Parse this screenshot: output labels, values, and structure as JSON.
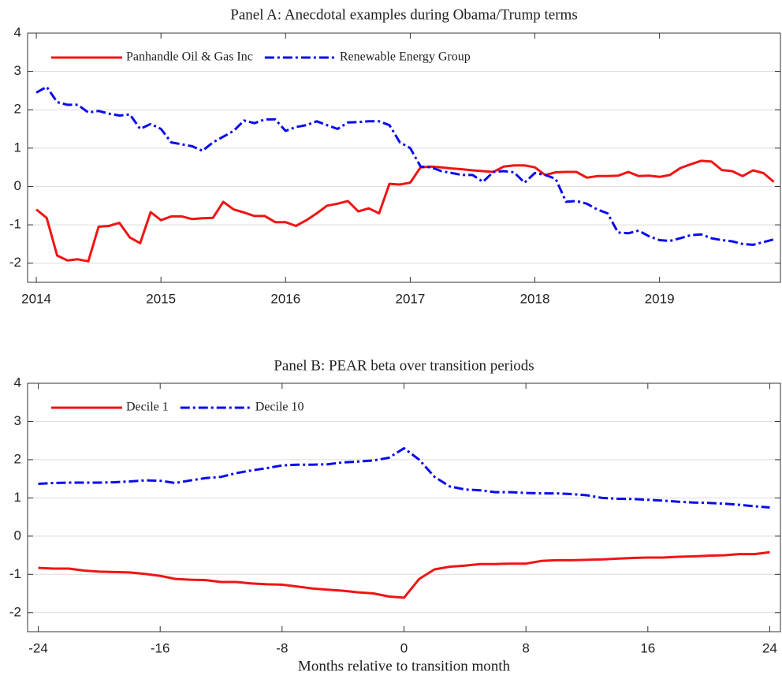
{
  "chart_data": [
    {
      "type": "line",
      "title": "Panel A: Anecdotal examples during Obama/Trump terms",
      "x": [
        2014,
        2014.083,
        2014.167,
        2014.25,
        2014.333,
        2014.417,
        2014.5,
        2014.583,
        2014.667,
        2014.75,
        2014.833,
        2014.917,
        2015,
        2015.083,
        2015.167,
        2015.25,
        2015.333,
        2015.417,
        2015.5,
        2015.583,
        2015.667,
        2015.75,
        2015.833,
        2015.917,
        2016,
        2016.083,
        2016.167,
        2016.25,
        2016.333,
        2016.417,
        2016.5,
        2016.583,
        2016.667,
        2016.75,
        2016.833,
        2016.917,
        2017,
        2017.083,
        2017.167,
        2017.25,
        2017.333,
        2017.417,
        2017.5,
        2017.583,
        2017.667,
        2017.75,
        2017.833,
        2017.917,
        2018,
        2018.083,
        2018.167,
        2018.25,
        2018.333,
        2018.417,
        2018.5,
        2018.583,
        2018.667,
        2018.75,
        2018.833,
        2018.917,
        2019,
        2019.083,
        2019.167,
        2019.25,
        2019.333,
        2019.417,
        2019.5,
        2019.583,
        2019.667,
        2019.75,
        2019.833,
        2019.917
      ],
      "series": [
        {
          "name": "Panhandle Oil & Gas Inc",
          "color": "#f01414",
          "dash": "solid",
          "values": [
            -0.6,
            -0.82,
            -1.8,
            -1.93,
            -1.9,
            -1.95,
            -1.05,
            -1.03,
            -0.95,
            -1.33,
            -1.48,
            -0.67,
            -0.88,
            -0.78,
            -0.78,
            -0.85,
            -0.83,
            -0.82,
            -0.4,
            -0.6,
            -0.68,
            -0.77,
            -0.77,
            -0.93,
            -0.93,
            -1.03,
            -0.88,
            -0.7,
            -0.5,
            -0.45,
            -0.38,
            -0.65,
            -0.57,
            -0.7,
            0.07,
            0.05,
            0.1,
            0.5,
            0.52,
            0.5,
            0.47,
            0.45,
            0.42,
            0.4,
            0.38,
            0.52,
            0.55,
            0.55,
            0.5,
            0.3,
            0.37,
            0.38,
            0.38,
            0.23,
            0.27,
            0.27,
            0.28,
            0.38,
            0.27,
            0.28,
            0.25,
            0.3,
            0.48,
            0.58,
            0.67,
            0.65,
            0.43,
            0.4,
            0.27,
            0.42,
            0.35,
            0.12
          ]
        },
        {
          "name": "Renewable Energy Group",
          "color": "#0a0af0",
          "dash": "dashdot",
          "values": [
            2.45,
            2.6,
            2.2,
            2.13,
            2.13,
            1.93,
            1.97,
            1.9,
            1.85,
            1.88,
            1.5,
            1.63,
            1.5,
            1.15,
            1.1,
            1.05,
            0.93,
            1.15,
            1.3,
            1.45,
            1.72,
            1.65,
            1.75,
            1.75,
            1.45,
            1.55,
            1.6,
            1.7,
            1.6,
            1.5,
            1.67,
            1.68,
            1.7,
            1.7,
            1.6,
            1.15,
            1.0,
            0.52,
            0.5,
            0.4,
            0.35,
            0.3,
            0.3,
            0.12,
            0.38,
            0.4,
            0.37,
            0.1,
            0.35,
            0.3,
            0.2,
            -0.4,
            -0.38,
            -0.45,
            -0.6,
            -0.7,
            -1.2,
            -1.22,
            -1.15,
            -1.3,
            -1.4,
            -1.42,
            -1.35,
            -1.27,
            -1.25,
            -1.35,
            -1.4,
            -1.43,
            -1.5,
            -1.52,
            -1.45,
            -1.38
          ]
        }
      ],
      "xlim": [
        2013.93,
        2019.97
      ],
      "xticks": [
        2014,
        2015,
        2016,
        2017,
        2018,
        2019
      ],
      "ylim": [
        -2.5,
        4
      ],
      "yticks": [
        -2,
        -1,
        0,
        1,
        2,
        3,
        4
      ],
      "grid": true,
      "legend": "upper left"
    },
    {
      "type": "line",
      "title": "Panel B: PEAR beta over transition periods",
      "xlabel": "Months relative to transition month",
      "x": [
        -24,
        -23,
        -22,
        -21,
        -20,
        -19,
        -18,
        -17,
        -16,
        -15,
        -14,
        -13,
        -12,
        -11,
        -10,
        -9,
        -8,
        -7,
        -6,
        -5,
        -4,
        -3,
        -2,
        -1,
        0,
        1,
        2,
        3,
        4,
        5,
        6,
        7,
        8,
        9,
        10,
        11,
        12,
        13,
        14,
        15,
        16,
        17,
        18,
        19,
        20,
        21,
        22,
        23,
        24
      ],
      "series": [
        {
          "name": "Decile 1",
          "color": "#f01414",
          "dash": "solid",
          "values": [
            -0.83,
            -0.85,
            -0.85,
            -0.9,
            -0.93,
            -0.94,
            -0.95,
            -0.99,
            -1.04,
            -1.12,
            -1.14,
            -1.15,
            -1.2,
            -1.2,
            -1.24,
            -1.26,
            -1.27,
            -1.32,
            -1.37,
            -1.4,
            -1.43,
            -1.47,
            -1.5,
            -1.58,
            -1.61,
            -1.12,
            -0.87,
            -0.8,
            -0.77,
            -0.73,
            -0.73,
            -0.72,
            -0.72,
            -0.65,
            -0.63,
            -0.63,
            -0.62,
            -0.61,
            -0.59,
            -0.57,
            -0.56,
            -0.56,
            -0.54,
            -0.53,
            -0.51,
            -0.5,
            -0.47,
            -0.47,
            -0.42
          ]
        },
        {
          "name": "Decile 10",
          "color": "#0a0af0",
          "dash": "dashdot",
          "values": [
            1.37,
            1.39,
            1.4,
            1.4,
            1.4,
            1.41,
            1.43,
            1.46,
            1.45,
            1.39,
            1.46,
            1.52,
            1.55,
            1.65,
            1.72,
            1.78,
            1.85,
            1.87,
            1.87,
            1.88,
            1.93,
            1.95,
            1.98,
            2.05,
            2.3,
            2.0,
            1.55,
            1.3,
            1.22,
            1.2,
            1.15,
            1.15,
            1.13,
            1.12,
            1.12,
            1.1,
            1.07,
            1.0,
            0.98,
            0.97,
            0.95,
            0.93,
            0.9,
            0.88,
            0.87,
            0.85,
            0.82,
            0.78,
            0.75
          ]
        }
      ],
      "xlim": [
        -24.7,
        24.7
      ],
      "xticks": [
        -24,
        -16,
        -8,
        0,
        8,
        16,
        24
      ],
      "ylim": [
        -2.5,
        4
      ],
      "yticks": [
        -2,
        -1,
        0,
        1,
        2,
        3,
        4
      ],
      "grid": true,
      "legend": "upper left"
    }
  ]
}
